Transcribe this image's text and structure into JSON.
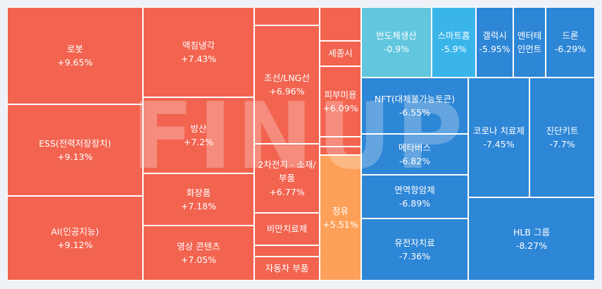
{
  "chart_data": {
    "type": "treemap",
    "watermark": "FINUP",
    "colors": {
      "red": "#f26450",
      "orange": "#fda15a",
      "blue": "#2e86d6",
      "mid_blue": "#3ab5ea",
      "light_blue": "#62c6de"
    },
    "tiles": [
      {
        "name": "로봇",
        "value": "+9.65%",
        "color": "red"
      },
      {
        "name": "ESS(전력저장장치)",
        "value": "+9.13%",
        "color": "red"
      },
      {
        "name": "AI(인공지능)",
        "value": "+9.12%",
        "color": "red"
      },
      {
        "name": "액침냉각",
        "value": "+7.43%",
        "color": "red"
      },
      {
        "name": "방산",
        "value": "+7.2%",
        "color": "red"
      },
      {
        "name": "화장품",
        "value": "+7.18%",
        "color": "red"
      },
      {
        "name": "영상 콘텐츠",
        "value": "+7.05%",
        "color": "red"
      },
      {
        "name": "",
        "value": "",
        "color": "red"
      },
      {
        "name": "조선/LNG선",
        "value": "+6.96%",
        "color": "red"
      },
      {
        "name": "2차전지 - 소재/부품",
        "value": "+6.77%",
        "color": "red"
      },
      {
        "name": "비만치료제",
        "value": "",
        "color": "red"
      },
      {
        "name": "",
        "value": "",
        "color": "red"
      },
      {
        "name": "자동차 부품",
        "value": "",
        "color": "red"
      },
      {
        "name": "",
        "value": "",
        "color": "red"
      },
      {
        "name": "세종시",
        "value": "",
        "color": "red"
      },
      {
        "name": "피부미용",
        "value": "+6.09%",
        "color": "red"
      },
      {
        "name": "",
        "value": "",
        "color": "red"
      },
      {
        "name": "",
        "value": "",
        "color": "red"
      },
      {
        "name": "정유",
        "value": "+5.51%",
        "color": "orange"
      },
      {
        "name": "반도체생산",
        "value": "-0.9%",
        "color": "light_blue"
      },
      {
        "name": "스마트홈",
        "value": "-5.9%",
        "color": "mid_blue"
      },
      {
        "name": "갤럭시",
        "value": "-5.95%",
        "color": "blue"
      },
      {
        "name": "엔터테인먼트",
        "value": "",
        "color": "blue"
      },
      {
        "name": "드론",
        "value": "-6.29%",
        "color": "blue"
      },
      {
        "name": "NFT(대체불가능토큰)",
        "value": "-6.55%",
        "color": "blue"
      },
      {
        "name": "메타버스",
        "value": "-6.82%",
        "color": "blue"
      },
      {
        "name": "면역항암제",
        "value": "-6.89%",
        "color": "blue"
      },
      {
        "name": "유전자치료",
        "value": "-7.36%",
        "color": "blue"
      },
      {
        "name": "코로나 치료제",
        "value": "-7.45%",
        "color": "blue"
      },
      {
        "name": "진단키트",
        "value": "-7.7%",
        "color": "blue"
      },
      {
        "name": "HLB 그룹",
        "value": "-8.27%",
        "color": "blue"
      }
    ]
  }
}
